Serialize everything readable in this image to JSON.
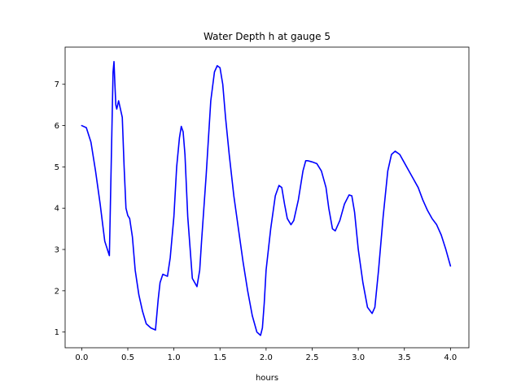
{
  "chart_data": {
    "type": "line",
    "title": "Water Depth h at gauge 5",
    "xlabel": "hours",
    "ylabel": "",
    "xlim": [
      -0.18,
      4.2
    ],
    "ylim": [
      0.62,
      7.9
    ],
    "xticks": [
      0.0,
      0.5,
      1.0,
      1.5,
      2.0,
      2.5,
      3.0,
      3.5,
      4.0
    ],
    "xtick_labels": [
      "0.0",
      "0.5",
      "1.0",
      "1.5",
      "2.0",
      "2.5",
      "3.0",
      "3.5",
      "4.0"
    ],
    "yticks": [
      1,
      2,
      3,
      4,
      5,
      6,
      7
    ],
    "ytick_labels": [
      "1",
      "2",
      "3",
      "4",
      "5",
      "6",
      "7"
    ],
    "grid": false,
    "series": [
      {
        "color": "#0000ff",
        "x": [
          0.0,
          0.05,
          0.1,
          0.15,
          0.2,
          0.25,
          0.3,
          0.34,
          0.35,
          0.36,
          0.37,
          0.38,
          0.4,
          0.42,
          0.44,
          0.46,
          0.48,
          0.5,
          0.52,
          0.55,
          0.58,
          0.62,
          0.66,
          0.7,
          0.75,
          0.8,
          0.83,
          0.85,
          0.88,
          0.9,
          0.93,
          0.96,
          1.0,
          1.03,
          1.06,
          1.08,
          1.1,
          1.12,
          1.15,
          1.2,
          1.25,
          1.28,
          1.3,
          1.35,
          1.4,
          1.44,
          1.47,
          1.5,
          1.53,
          1.56,
          1.6,
          1.65,
          1.7,
          1.75,
          1.8,
          1.85,
          1.9,
          1.94,
          1.96,
          1.98,
          2.0,
          2.05,
          2.1,
          2.14,
          2.17,
          2.2,
          2.23,
          2.27,
          2.3,
          2.35,
          2.4,
          2.43,
          2.45,
          2.5,
          2.55,
          2.6,
          2.65,
          2.68,
          2.72,
          2.75,
          2.8,
          2.85,
          2.9,
          2.93,
          2.96,
          3.0,
          3.05,
          3.1,
          3.15,
          3.18,
          3.22,
          3.27,
          3.32,
          3.36,
          3.4,
          3.45,
          3.5,
          3.55,
          3.6,
          3.65,
          3.7,
          3.75,
          3.8,
          3.85,
          3.9,
          3.95,
          4.0
        ],
        "y": [
          6.0,
          5.95,
          5.6,
          4.9,
          4.1,
          3.2,
          2.85,
          7.3,
          7.55,
          7.0,
          6.5,
          6.4,
          6.6,
          6.4,
          6.2,
          5.0,
          4.0,
          3.82,
          3.75,
          3.3,
          2.5,
          1.9,
          1.5,
          1.2,
          1.1,
          1.05,
          1.8,
          2.2,
          2.4,
          2.38,
          2.35,
          2.8,
          3.8,
          5.0,
          5.7,
          5.98,
          5.85,
          5.3,
          3.8,
          2.3,
          2.1,
          2.5,
          3.2,
          4.8,
          6.6,
          7.3,
          7.45,
          7.4,
          7.0,
          6.2,
          5.3,
          4.3,
          3.5,
          2.7,
          2.0,
          1.4,
          1.0,
          0.92,
          1.1,
          1.7,
          2.5,
          3.5,
          4.3,
          4.55,
          4.5,
          4.1,
          3.75,
          3.6,
          3.7,
          4.2,
          4.9,
          5.15,
          5.15,
          5.12,
          5.08,
          4.9,
          4.5,
          4.0,
          3.5,
          3.45,
          3.7,
          4.1,
          4.32,
          4.3,
          3.9,
          3.0,
          2.2,
          1.6,
          1.45,
          1.6,
          2.5,
          3.8,
          4.9,
          5.3,
          5.38,
          5.3,
          5.1,
          4.9,
          4.7,
          4.5,
          4.2,
          3.95,
          3.75,
          3.6,
          3.35,
          3.0,
          2.6
        ]
      }
    ]
  }
}
